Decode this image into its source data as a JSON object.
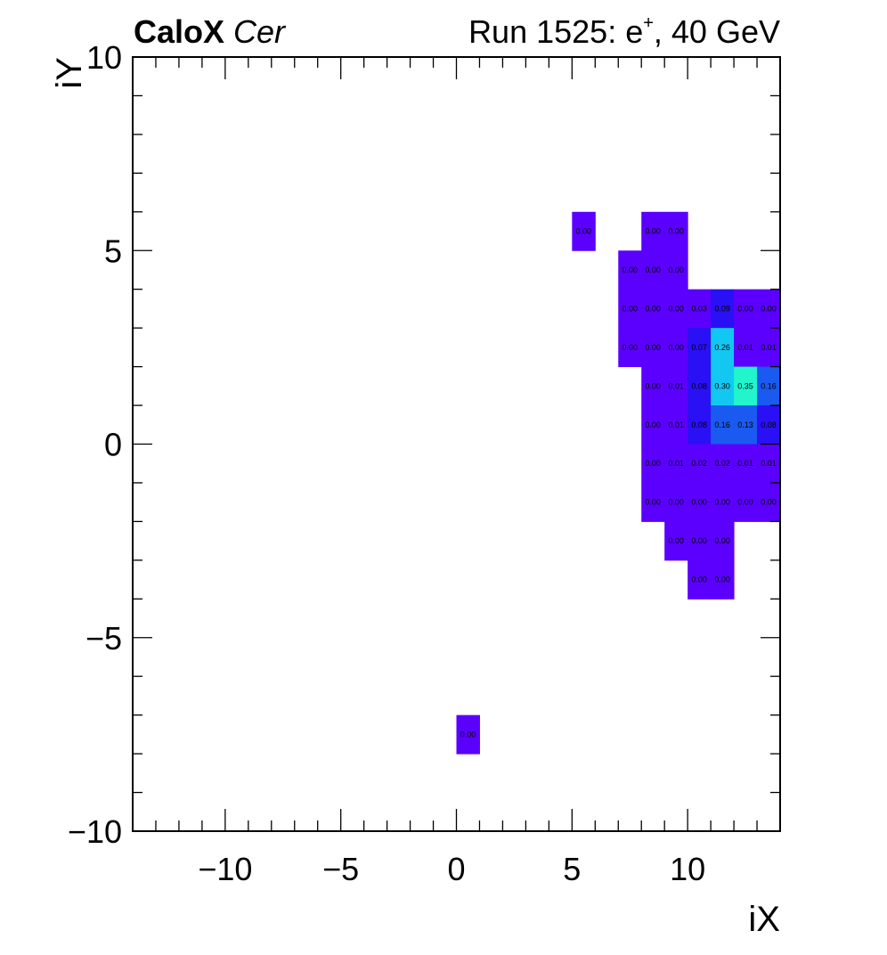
{
  "header": {
    "experiment": "CaloX",
    "channel": "Cer",
    "run_text_pre": "Run 1525: e",
    "run_text_sup": "+",
    "run_text_post": ", 40 GeV"
  },
  "chart_data": {
    "type": "heatmap",
    "title": "",
    "xlabel": "iX",
    "ylabel": "iY",
    "xlim": [
      -14,
      14
    ],
    "ylim": [
      -10,
      10
    ],
    "xticks": [
      -10,
      -5,
      0,
      5,
      10
    ],
    "yticks": [
      -10,
      -5,
      0,
      5,
      10
    ],
    "tick_labels_x": [
      "−10",
      "−5",
      "0",
      "5",
      "10"
    ],
    "tick_labels_y": [
      "−10",
      "−5",
      "0",
      "5",
      "10"
    ],
    "grid": false,
    "colors": {
      "low": "#5b00ff",
      "mid_low": "#2a10f5",
      "mid": "#1a5af0",
      "high": "#12c8f2",
      "max": "#22f5cc"
    },
    "cells": [
      {
        "x": 5,
        "y": 5,
        "v": 0.0
      },
      {
        "x": 8,
        "y": 5,
        "v": 0.0
      },
      {
        "x": 9,
        "y": 5,
        "v": 0.0
      },
      {
        "x": 7,
        "y": 4,
        "v": 0.0
      },
      {
        "x": 8,
        "y": 4,
        "v": 0.0
      },
      {
        "x": 9,
        "y": 4,
        "v": 0.0
      },
      {
        "x": 7,
        "y": 3,
        "v": 0.0
      },
      {
        "x": 8,
        "y": 3,
        "v": 0.0
      },
      {
        "x": 9,
        "y": 3,
        "v": 0.0
      },
      {
        "x": 10,
        "y": 3,
        "v": 0.03
      },
      {
        "x": 11,
        "y": 3,
        "v": 0.09
      },
      {
        "x": 12,
        "y": 3,
        "v": 0.0
      },
      {
        "x": 13,
        "y": 3,
        "v": 0.0
      },
      {
        "x": 7,
        "y": 2,
        "v": 0.0
      },
      {
        "x": 8,
        "y": 2,
        "v": 0.0
      },
      {
        "x": 9,
        "y": 2,
        "v": 0.0
      },
      {
        "x": 10,
        "y": 2,
        "v": 0.07
      },
      {
        "x": 11,
        "y": 2,
        "v": 0.26
      },
      {
        "x": 12,
        "y": 2,
        "v": 0.01
      },
      {
        "x": 13,
        "y": 2,
        "v": 0.01
      },
      {
        "x": 8,
        "y": 1,
        "v": 0.0
      },
      {
        "x": 9,
        "y": 1,
        "v": 0.01
      },
      {
        "x": 10,
        "y": 1,
        "v": 0.08
      },
      {
        "x": 11,
        "y": 1,
        "v": 0.3
      },
      {
        "x": 12,
        "y": 1,
        "v": 0.35
      },
      {
        "x": 13,
        "y": 1,
        "v": 0.16
      },
      {
        "x": 8,
        "y": 0,
        "v": 0.0
      },
      {
        "x": 9,
        "y": 0,
        "v": 0.01
      },
      {
        "x": 10,
        "y": 0,
        "v": 0.08
      },
      {
        "x": 11,
        "y": 0,
        "v": 0.16
      },
      {
        "x": 12,
        "y": 0,
        "v": 0.13
      },
      {
        "x": 13,
        "y": 0,
        "v": 0.08
      },
      {
        "x": 8,
        "y": -1,
        "v": 0.0
      },
      {
        "x": 9,
        "y": -1,
        "v": 0.01
      },
      {
        "x": 10,
        "y": -1,
        "v": 0.02
      },
      {
        "x": 11,
        "y": -1,
        "v": 0.02
      },
      {
        "x": 12,
        "y": -1,
        "v": 0.01
      },
      {
        "x": 13,
        "y": -1,
        "v": 0.01
      },
      {
        "x": 8,
        "y": -2,
        "v": 0.0
      },
      {
        "x": 9,
        "y": -2,
        "v": 0.0
      },
      {
        "x": 10,
        "y": -2,
        "v": 0.0
      },
      {
        "x": 11,
        "y": -2,
        "v": 0.0
      },
      {
        "x": 12,
        "y": -2,
        "v": 0.0
      },
      {
        "x": 13,
        "y": -2,
        "v": 0.0
      },
      {
        "x": 9,
        "y": -3,
        "v": 0.0
      },
      {
        "x": 10,
        "y": -3,
        "v": 0.0
      },
      {
        "x": 11,
        "y": -3,
        "v": 0.0
      },
      {
        "x": 10,
        "y": -4,
        "v": 0.0
      },
      {
        "x": 11,
        "y": -4,
        "v": 0.0
      },
      {
        "x": 0,
        "y": -8,
        "v": 0.0
      }
    ],
    "cell_labels": [
      {
        "x": 5,
        "y": 5,
        "text": "0.00"
      },
      {
        "x": 8,
        "y": 5,
        "text": "0.00"
      },
      {
        "x": 9,
        "y": 5,
        "text": "0.00"
      },
      {
        "x": 7,
        "y": 4,
        "text": "0.00"
      },
      {
        "x": 8,
        "y": 4,
        "text": "0.00"
      },
      {
        "x": 9,
        "y": 4,
        "text": "0.00"
      },
      {
        "x": 7,
        "y": 3,
        "text": "0.00"
      },
      {
        "x": 8,
        "y": 3,
        "text": "0.00"
      },
      {
        "x": 9,
        "y": 3,
        "text": "0.00"
      },
      {
        "x": 10,
        "y": 3,
        "text": "0.03"
      },
      {
        "x": 11,
        "y": 3,
        "text": "0.09"
      },
      {
        "x": 12,
        "y": 3,
        "text": "0.00"
      },
      {
        "x": 13,
        "y": 3,
        "text": "0.00"
      },
      {
        "x": 7,
        "y": 2,
        "text": "0.00"
      },
      {
        "x": 8,
        "y": 2,
        "text": "0.00"
      },
      {
        "x": 9,
        "y": 2,
        "text": "0.00"
      },
      {
        "x": 10,
        "y": 2,
        "text": "0.07"
      },
      {
        "x": 11,
        "y": 2,
        "text": "0.26"
      },
      {
        "x": 12,
        "y": 2,
        "text": "0.01"
      },
      {
        "x": 13,
        "y": 2,
        "text": "0.01"
      },
      {
        "x": 8,
        "y": 1,
        "text": "0.00"
      },
      {
        "x": 9,
        "y": 1,
        "text": "0.01"
      },
      {
        "x": 10,
        "y": 1,
        "text": "0.08"
      },
      {
        "x": 11,
        "y": 1,
        "text": "0.30"
      },
      {
        "x": 12,
        "y": 1,
        "text": "0.35"
      },
      {
        "x": 13,
        "y": 1,
        "text": "0.16"
      },
      {
        "x": 8,
        "y": 0,
        "text": "0.00"
      },
      {
        "x": 9,
        "y": 0,
        "text": "0.01"
      },
      {
        "x": 10,
        "y": 0,
        "text": "0.08"
      },
      {
        "x": 11,
        "y": 0,
        "text": "0.16"
      },
      {
        "x": 12,
        "y": 0,
        "text": "0.13"
      },
      {
        "x": 13,
        "y": 0,
        "text": "0.08"
      },
      {
        "x": 8,
        "y": -1,
        "text": "0.00"
      },
      {
        "x": 9,
        "y": -1,
        "text": "0.01"
      },
      {
        "x": 10,
        "y": -1,
        "text": "0.02"
      },
      {
        "x": 11,
        "y": -1,
        "text": "0.02"
      },
      {
        "x": 12,
        "y": -1,
        "text": "0.01"
      },
      {
        "x": 13,
        "y": -1,
        "text": "0.01"
      },
      {
        "x": 8,
        "y": -2,
        "text": "0.00"
      },
      {
        "x": 9,
        "y": -2,
        "text": "0.00"
      },
      {
        "x": 10,
        "y": -2,
        "text": "0.00"
      },
      {
        "x": 11,
        "y": -2,
        "text": "0.00"
      },
      {
        "x": 12,
        "y": -2,
        "text": "0.00"
      },
      {
        "x": 13,
        "y": -2,
        "text": "0.00"
      },
      {
        "x": 9,
        "y": -3,
        "text": "0.00"
      },
      {
        "x": 10,
        "y": -3,
        "text": "0.00"
      },
      {
        "x": 11,
        "y": -3,
        "text": "0.00"
      },
      {
        "x": 10,
        "y": -4,
        "text": "0.00"
      },
      {
        "x": 11,
        "y": -4,
        "text": "0.00"
      },
      {
        "x": 0,
        "y": -8,
        "text": "0.00"
      }
    ]
  }
}
